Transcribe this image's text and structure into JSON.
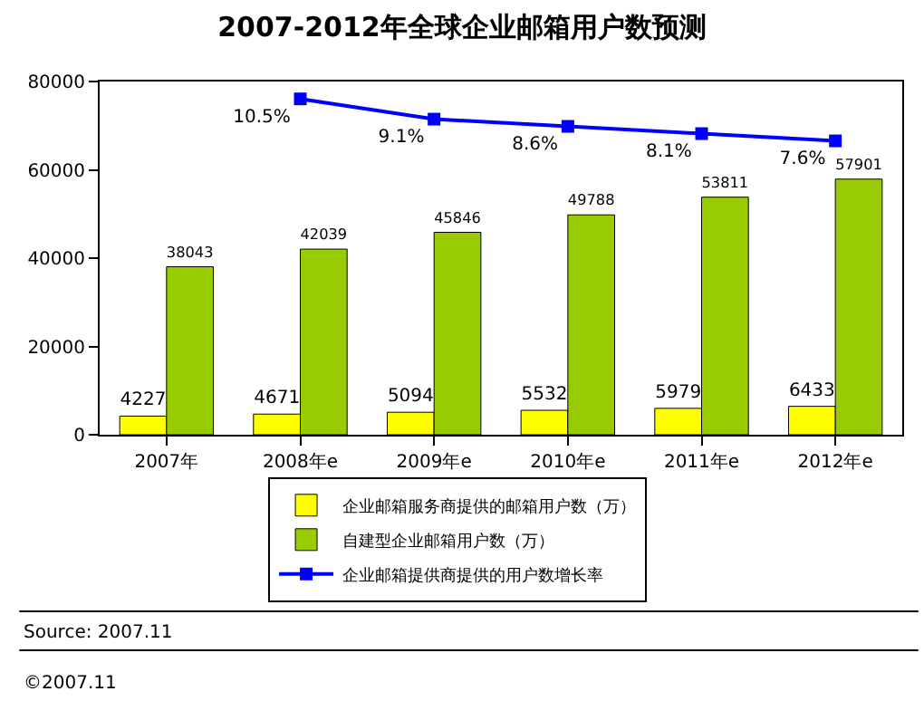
{
  "chart_data": {
    "type": "bar",
    "title": "2007-2012年全球企业邮箱用户数预测",
    "categories": [
      "2007年",
      "2008年e",
      "2009年e",
      "2010年e",
      "2011年e",
      "2012年e"
    ],
    "series": [
      {
        "name": "企业邮箱服务商提供的邮箱用户数（万）",
        "color": "#ffff00",
        "values": [
          4227,
          4671,
          5094,
          5532,
          5979,
          6433
        ]
      },
      {
        "name": "自建型企业邮箱用户数（万）",
        "color": "#99cc00",
        "values": [
          38043,
          42039,
          45846,
          49788,
          53811,
          57901
        ]
      },
      {
        "name": "企业邮箱提供商提供的用户数增长率",
        "color": "#0000ff",
        "type": "line",
        "axis": "y2",
        "marker": "square",
        "values": [
          null,
          10.5,
          9.1,
          8.6,
          8.1,
          7.6
        ],
        "value_labels": [
          null,
          "10.5%",
          "9.1%",
          "8.6%",
          "8.1%",
          "7.6%"
        ]
      }
    ],
    "ylim": [
      0,
      80000
    ],
    "yticks": [
      0,
      20000,
      40000,
      60000,
      80000
    ],
    "y2lim": [
      -12.7,
      11.7
    ],
    "data_labels": true,
    "legend": "bottom",
    "annotations": [
      "Source: 2007.11",
      "©2007.11"
    ]
  }
}
